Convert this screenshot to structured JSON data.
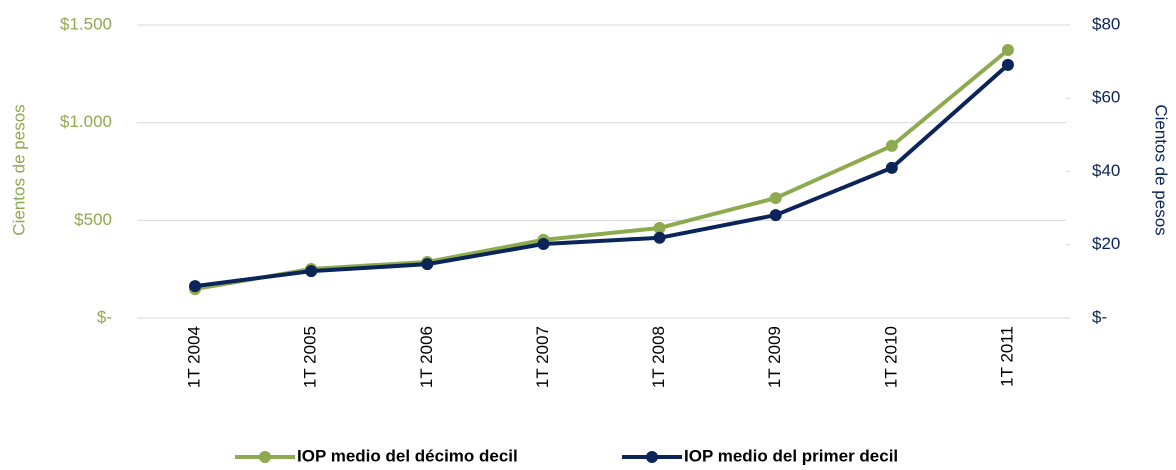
{
  "chart_data": {
    "type": "line",
    "categories": [
      "1T 2004",
      "1T 2005",
      "1T 2006",
      "1T 2007",
      "1T 2008",
      "1T 2009",
      "1T 2010",
      "1T 2011"
    ],
    "series": [
      {
        "name": "IOP medio del décimo decil",
        "color": "#8eaa4e",
        "values": [
          148,
          251,
          287,
          400,
          461,
          614,
          881,
          1372
        ]
      },
      {
        "name": "IOP medio del primer decil",
        "color": "#0b2459",
        "axis": "y2",
        "values": [
          8.7,
          12.8,
          14.7,
          20.2,
          21.9,
          28.1,
          41,
          69.1
        ]
      }
    ],
    "ylabel": "Cientos de pesos",
    "y2label": "Cientos de pesos",
    "ylim": [
      0,
      1500
    ],
    "yticks": [
      {
        "value": 0,
        "label": "$-"
      },
      {
        "value": 500,
        "label": "$500"
      },
      {
        "value": 1000,
        "label": "$1.000"
      },
      {
        "value": 1500,
        "label": "$1.500"
      }
    ],
    "y2lim": [
      0,
      80
    ],
    "y2ticks": [
      {
        "value": 0,
        "label": "$-"
      },
      {
        "value": 20,
        "label": "$20"
      },
      {
        "value": 40,
        "label": "$40"
      },
      {
        "value": 60,
        "label": "$60"
      },
      {
        "value": 80,
        "label": "$80"
      }
    ],
    "grid": true,
    "legend": "bottom"
  }
}
